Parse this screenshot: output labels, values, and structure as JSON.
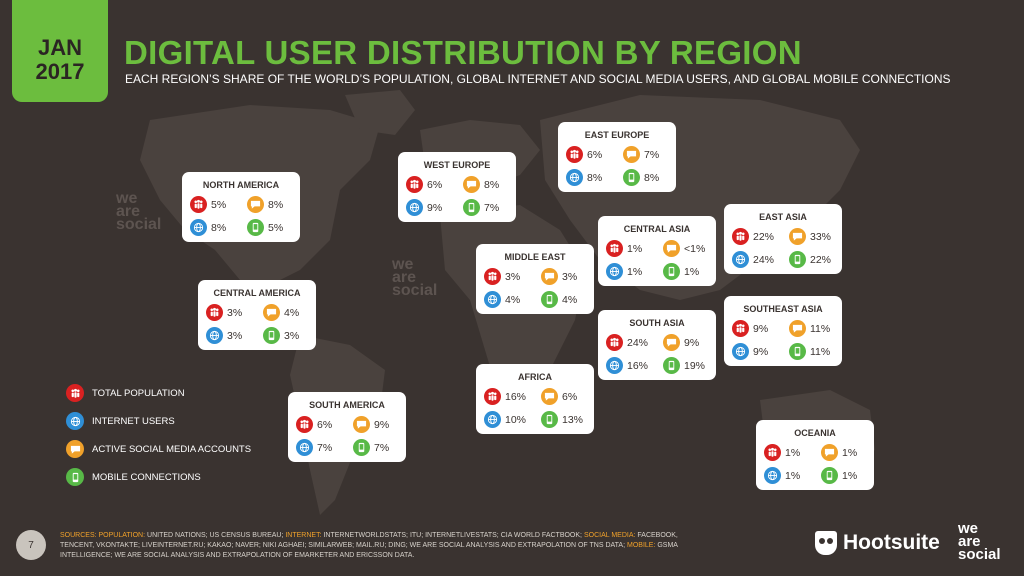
{
  "header": {
    "badge_line1": "JAN",
    "badge_line2": "2017",
    "title": "DIGITAL USER DISTRIBUTION BY REGION",
    "subtitle": "EACH REGION’S SHARE OF THE WORLD’S POPULATION, GLOBAL INTERNET AND SOCIAL MEDIA USERS, AND GLOBAL MOBILE CONNECTIONS"
  },
  "colors": {
    "background": "#3a3330",
    "accent_green": "#6cbd3e",
    "population": "#d92121",
    "internet": "#2f8fd6",
    "social": "#f0a12a",
    "mobile": "#58b947"
  },
  "icons": {
    "population": "people-icon",
    "internet": "globe-icon",
    "social": "speech-bubble-icon",
    "mobile": "phone-icon"
  },
  "regions": {
    "north_america": {
      "name": "NORTH AMERICA",
      "population": "5%",
      "social": "8%",
      "internet": "8%",
      "mobile": "5%"
    },
    "central_america": {
      "name": "CENTRAL AMERICA",
      "population": "3%",
      "social": "4%",
      "internet": "3%",
      "mobile": "3%"
    },
    "south_america": {
      "name": "SOUTH AMERICA",
      "population": "6%",
      "social": "9%",
      "internet": "7%",
      "mobile": "7%"
    },
    "west_europe": {
      "name": "WEST EUROPE",
      "population": "6%",
      "social": "8%",
      "internet": "9%",
      "mobile": "7%"
    },
    "east_europe": {
      "name": "EAST EUROPE",
      "population": "6%",
      "social": "7%",
      "internet": "8%",
      "mobile": "8%"
    },
    "middle_east": {
      "name": "MIDDLE EAST",
      "population": "3%",
      "social": "3%",
      "internet": "4%",
      "mobile": "4%"
    },
    "africa": {
      "name": "AFRICA",
      "population": "16%",
      "social": "6%",
      "internet": "10%",
      "mobile": "13%"
    },
    "central_asia": {
      "name": "CENTRAL ASIA",
      "population": "1%",
      "social": "<1%",
      "internet": "1%",
      "mobile": "1%"
    },
    "south_asia": {
      "name": "SOUTH ASIA",
      "population": "24%",
      "social": "9%",
      "internet": "16%",
      "mobile": "19%"
    },
    "east_asia": {
      "name": "EAST ASIA",
      "population": "22%",
      "social": "33%",
      "internet": "24%",
      "mobile": "22%"
    },
    "southeast_asia": {
      "name": "SOUTHEAST ASIA",
      "population": "9%",
      "social": "11%",
      "internet": "9%",
      "mobile": "11%"
    },
    "oceania": {
      "name": "OCEANIA",
      "population": "1%",
      "social": "1%",
      "internet": "1%",
      "mobile": "1%"
    }
  },
  "legend": {
    "population": "TOTAL POPULATION",
    "internet": "INTERNET USERS",
    "social": "ACTIVE SOCIAL MEDIA ACCOUNTS",
    "mobile": "MOBILE CONNECTIONS"
  },
  "footer": {
    "page_number": "7",
    "sources_label": "SOURCES:",
    "population_label": "POPULATION:",
    "population_text": "UNITED NATIONS; US CENSUS BUREAU;",
    "internet_label": "INTERNET:",
    "internet_text": "INTERNETWORLDSTATS; ITU; INTERNETLIVESTATS; CIA WORLD FACTBOOK;",
    "social_label": "SOCIAL MEDIA:",
    "social_text": "FACEBOOK, TENCENT, VKONTAKTE; LIVEINTERNET.RU; KAKAO; NAVER; NIKI AGHAEI; SIMILARWEB; MAIL.RU; DING; WE ARE SOCIAL ANALYSIS AND EXTRAPOLATION OF TNS DATA;",
    "mobile_label": "MOBILE:",
    "mobile_text": "GSMA INTELLIGENCE; WE ARE SOCIAL ANALYSIS AND EXTRAPOLATION OF EMARKETER AND ERICSSON DATA.",
    "brand_hootsuite": "Hootsuite",
    "brand_was_1": "we",
    "brand_was_2": "are",
    "brand_was_3": "social"
  },
  "watermarks": {
    "line1": "we",
    "line2": "are",
    "line3": "social"
  }
}
